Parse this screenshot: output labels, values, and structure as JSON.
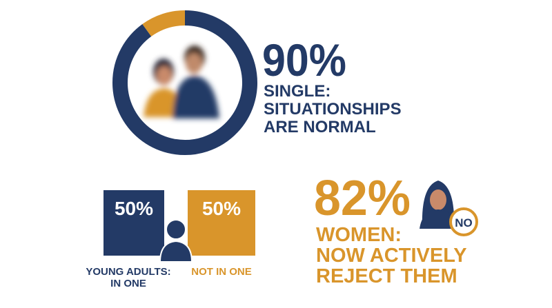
{
  "donut": {
    "value": 90,
    "value_label": "90%",
    "caption": [
      "SINGLE:",
      "SITUATIONSHIPS",
      "ARE NORMAL"
    ]
  },
  "split": {
    "items": [
      {
        "value": 50,
        "value_label": "50%",
        "label": [
          "YOUNG ADULTS:",
          "IN ONE"
        ]
      },
      {
        "value": 50,
        "value_label": "50%",
        "label": [
          "NOT IN ONE"
        ]
      }
    ]
  },
  "women": {
    "value_label": "82%",
    "badge": "NO",
    "caption": [
      "WOMEN:",
      "NOW ACTIVELY",
      "REJECT THEM"
    ]
  }
}
